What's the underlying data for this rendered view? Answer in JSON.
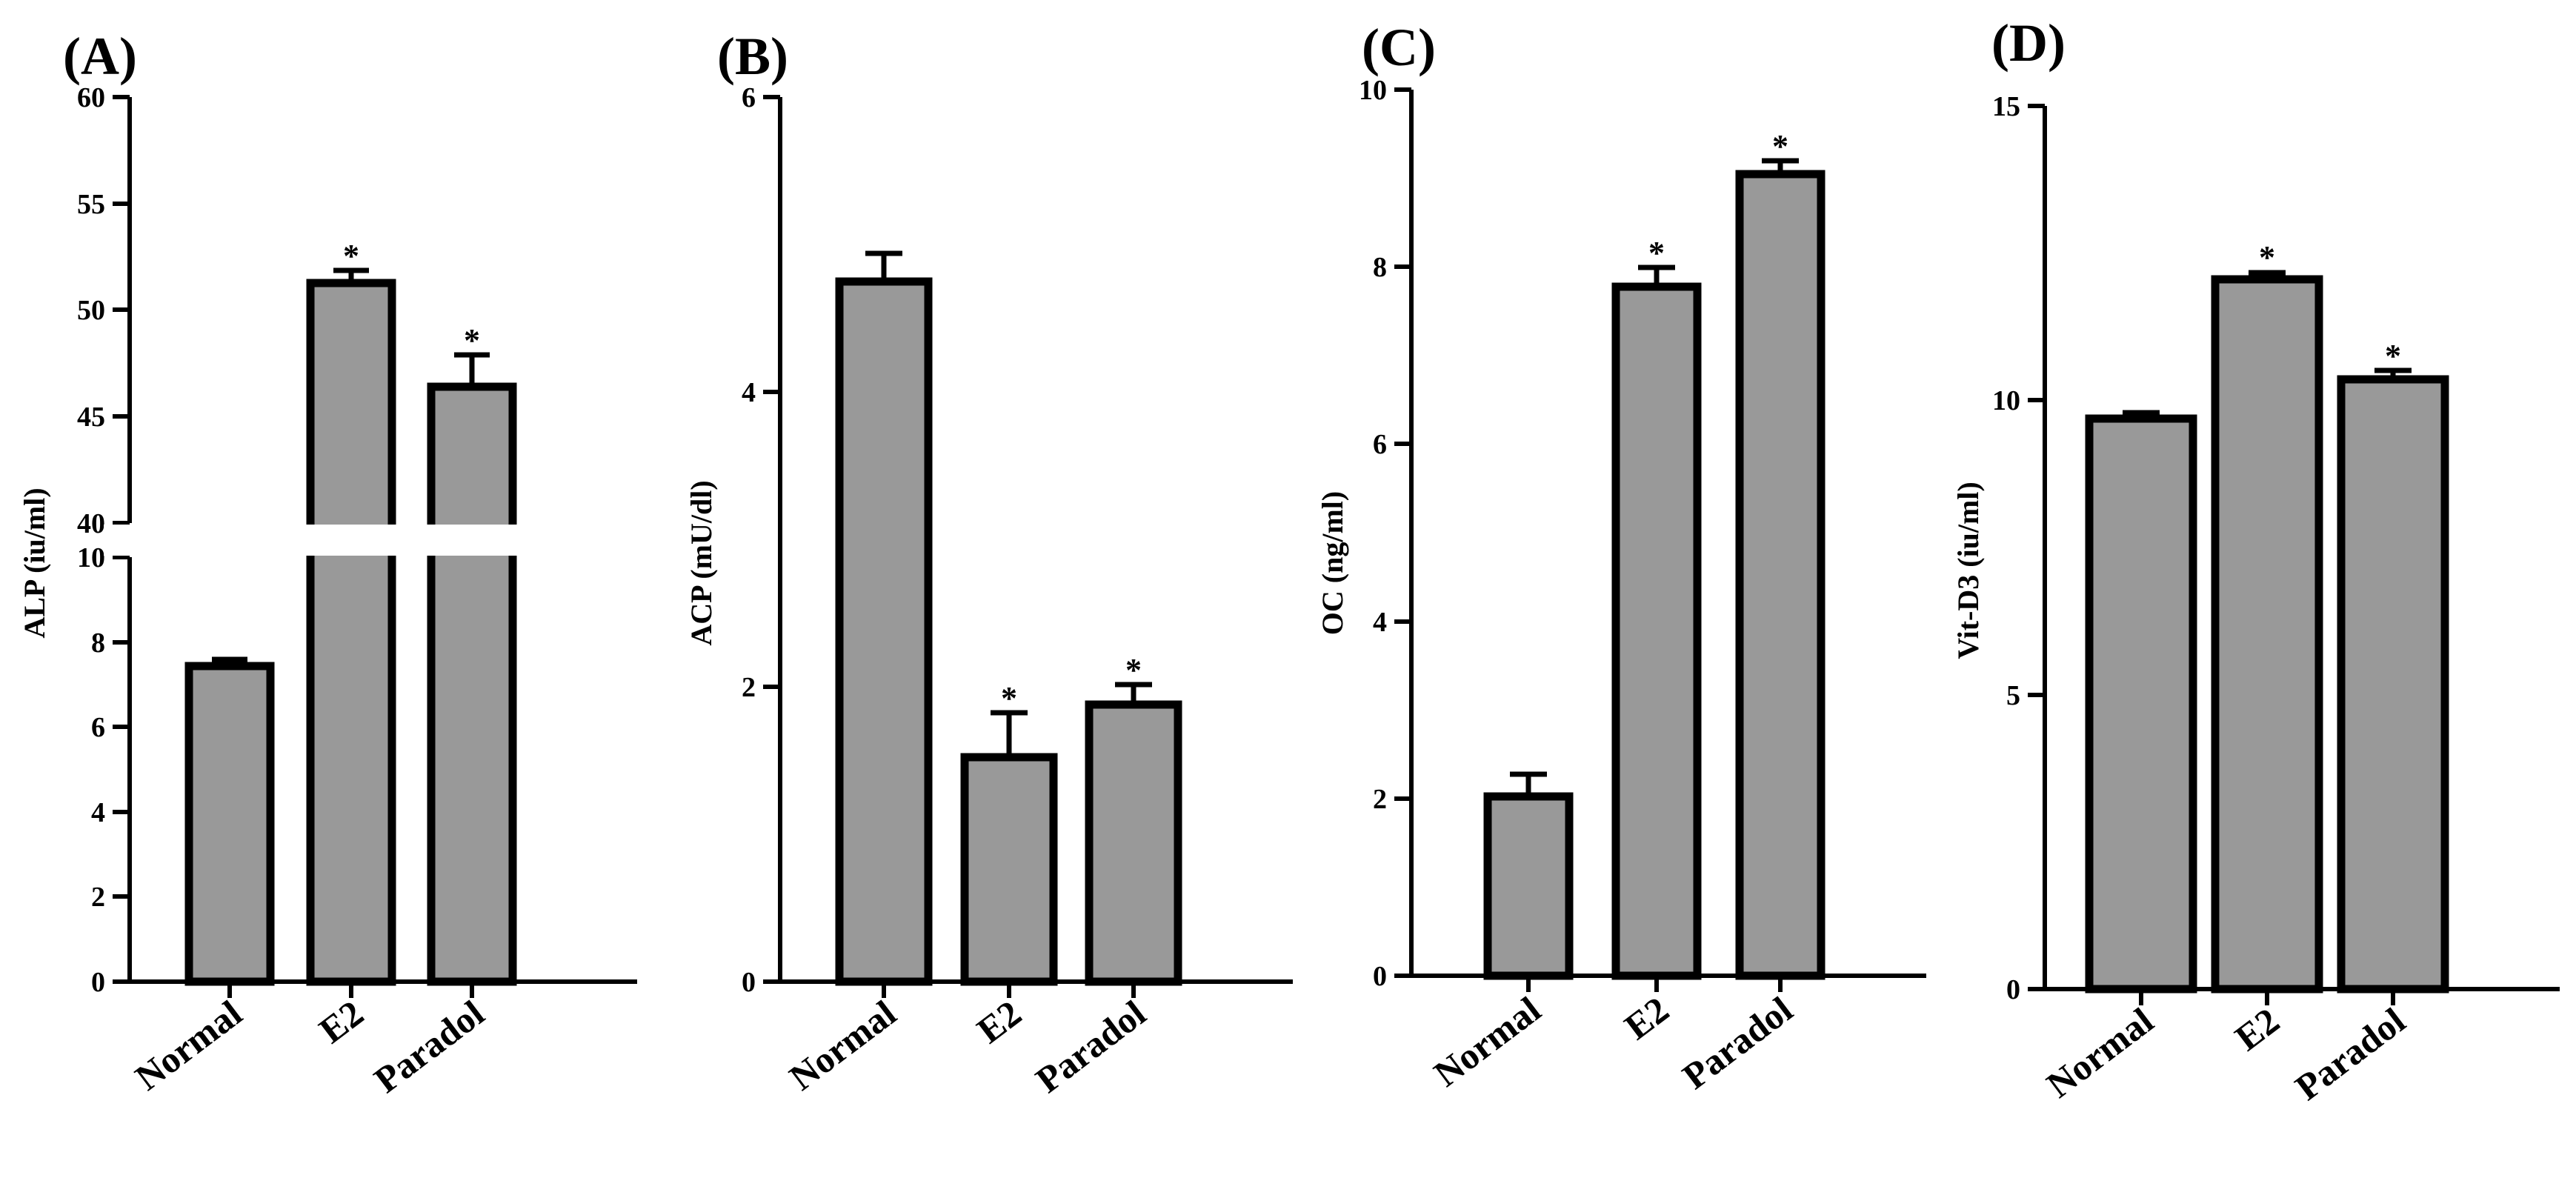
{
  "chart_data": [
    {
      "type": "bar",
      "panel": "(A)",
      "ylabel": "ALP (iu/ml)",
      "categories": [
        "Normal",
        "E2",
        "Paradol"
      ],
      "values": [
        7.4,
        51.2,
        46.3
      ],
      "errors": [
        0.15,
        0.6,
        1.5
      ],
      "significance": [
        "",
        "*",
        "*"
      ],
      "axis_break": true,
      "ylim_lower": [
        0,
        10
      ],
      "ylim_upper": [
        40,
        60
      ],
      "ticks_lower": [
        "0",
        "2",
        "4",
        "6",
        "8",
        "10"
      ],
      "ticks_upper": [
        "40",
        "45",
        "50",
        "55",
        "60"
      ]
    },
    {
      "type": "bar",
      "panel": "(B)",
      "ylabel": "ACP (mU/dl)",
      "categories": [
        "Normal",
        "E2",
        "Paradol"
      ],
      "values": [
        4.75,
        1.52,
        1.88
      ],
      "errors": [
        0.18,
        0.3,
        0.13
      ],
      "significance": [
        "",
        "*",
        "*"
      ],
      "ylim": [
        0,
        6
      ],
      "ticks": [
        "0",
        "2",
        "4",
        "6"
      ]
    },
    {
      "type": "bar",
      "panel": "(C)",
      "ylabel": "OC (ng/ml)",
      "categories": [
        "Normal",
        "E2",
        "Paradol"
      ],
      "values": [
        2.02,
        7.78,
        9.05
      ],
      "errors": [
        0.25,
        0.22,
        0.15
      ],
      "significance": [
        "",
        "*",
        "*"
      ],
      "ylim": [
        0,
        10
      ],
      "ticks": [
        "0",
        "2",
        "4",
        "6",
        "8",
        "10"
      ]
    },
    {
      "type": "bar",
      "panel": "(D)",
      "ylabel": "Vit-D3 (iu/ml)",
      "categories": [
        "Normal",
        "E2",
        "Paradol"
      ],
      "values": [
        9.7,
        12.0,
        10.35
      ],
      "errors": [
        0.1,
        0.12,
        0.15
      ],
      "significance": [
        "",
        "*",
        "*"
      ],
      "ylim": [
        0,
        15
      ],
      "ticks": [
        "0",
        "5",
        "10",
        "15"
      ]
    }
  ]
}
